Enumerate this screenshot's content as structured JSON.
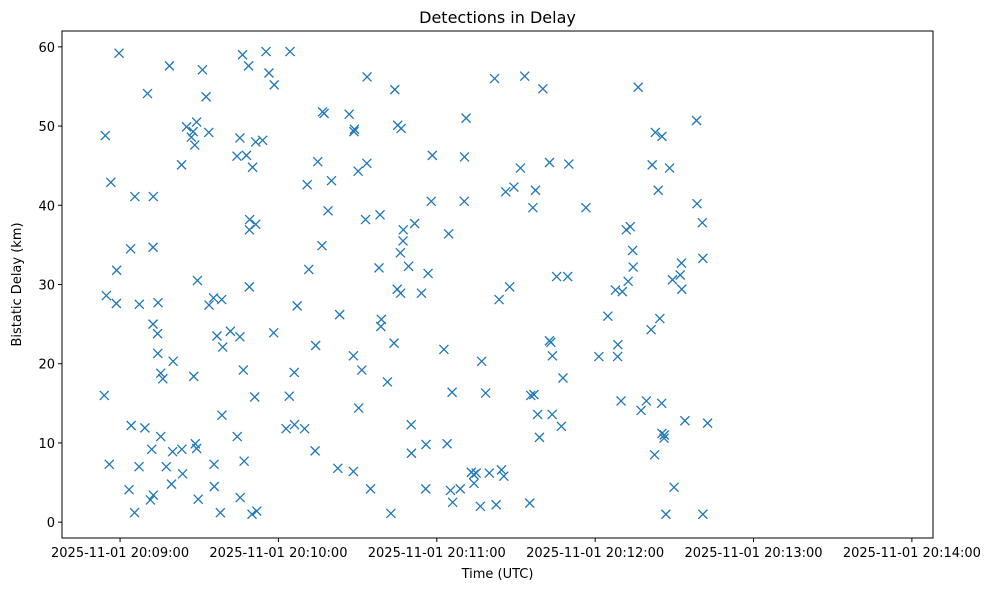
{
  "chart_data": {
    "type": "scatter",
    "title": "Detections in Delay",
    "xlabel": "Time (UTC)",
    "ylabel": "Bistatic Delay (km)",
    "x_unit": "seconds after 2025-11-01 20:08:00",
    "xlim": [
      38,
      368
    ],
    "ylim": [
      -2,
      62
    ],
    "x_ticks": [
      {
        "value": 60,
        "label": "2025-11-01 20:09:00"
      },
      {
        "value": 120,
        "label": "2025-11-01 20:10:00"
      },
      {
        "value": 180,
        "label": "2025-11-01 20:11:00"
      },
      {
        "value": 240,
        "label": "2025-11-01 20:12:00"
      },
      {
        "value": 300,
        "label": "2025-11-01 20:13:00"
      },
      {
        "value": 360,
        "label": "2025-11-01 20:14:00"
      }
    ],
    "y_ticks": [
      {
        "value": 0,
        "label": "0"
      },
      {
        "value": 10,
        "label": "10"
      },
      {
        "value": 20,
        "label": "20"
      },
      {
        "value": 30,
        "label": "30"
      },
      {
        "value": 40,
        "label": "40"
      },
      {
        "value": 50,
        "label": "50"
      },
      {
        "value": 60,
        "label": "60"
      }
    ],
    "marker": "x",
    "color": "#1f77b4",
    "series": [
      {
        "name": "detections",
        "points": [
          [
            54.0,
            16.0
          ],
          [
            54.4,
            48.8
          ],
          [
            54.8,
            28.6
          ],
          [
            55.9,
            7.3
          ],
          [
            56.5,
            42.9
          ],
          [
            58.6,
            27.6
          ],
          [
            58.7,
            31.8
          ],
          [
            59.6,
            59.2
          ],
          [
            63.4,
            4.1
          ],
          [
            64.2,
            12.2
          ],
          [
            64.0,
            34.5
          ],
          [
            65.6,
            41.1
          ],
          [
            65.5,
            1.2
          ],
          [
            67.3,
            27.5
          ],
          [
            67.2,
            7.0
          ],
          [
            69.4,
            11.9
          ],
          [
            70.4,
            54.1
          ],
          [
            71.5,
            2.8
          ],
          [
            72.0,
            9.2
          ],
          [
            72.6,
            3.4
          ],
          [
            72.6,
            41.1
          ],
          [
            72.5,
            34.7
          ],
          [
            72.5,
            25.0
          ],
          [
            74.2,
            23.8
          ],
          [
            74.3,
            21.3
          ],
          [
            74.4,
            27.7
          ],
          [
            75.4,
            18.8
          ],
          [
            75.4,
            10.8
          ],
          [
            76.2,
            18.1
          ],
          [
            77.5,
            7.0
          ],
          [
            78.7,
            57.6
          ],
          [
            79.5,
            4.8
          ],
          [
            79.9,
            8.9
          ],
          [
            80.1,
            20.3
          ],
          [
            83.3,
            45.1
          ],
          [
            83.4,
            9.2
          ],
          [
            83.7,
            6.1
          ],
          [
            85.2,
            49.9
          ],
          [
            87.0,
            48.6
          ],
          [
            87.7,
            49.3
          ],
          [
            87.9,
            18.4
          ],
          [
            88.3,
            47.6
          ],
          [
            88.5,
            9.9
          ],
          [
            89.0,
            50.5
          ],
          [
            89.0,
            9.3
          ],
          [
            89.3,
            30.5
          ],
          [
            89.6,
            2.9
          ],
          [
            91.2,
            57.1
          ],
          [
            92.6,
            53.7
          ],
          [
            93.6,
            49.2
          ],
          [
            93.7,
            27.4
          ],
          [
            95.4,
            28.3
          ],
          [
            95.6,
            7.3
          ],
          [
            95.7,
            4.5
          ],
          [
            96.7,
            23.5
          ],
          [
            98.0,
            1.2
          ],
          [
            98.5,
            28.1
          ],
          [
            98.6,
            13.5
          ],
          [
            98.9,
            22.1
          ],
          [
            101.8,
            24.1
          ],
          [
            104.3,
            46.2
          ],
          [
            104.4,
            10.8
          ],
          [
            105.4,
            48.5
          ],
          [
            105.4,
            23.4
          ],
          [
            105.5,
            3.1
          ],
          [
            106.4,
            59.0
          ],
          [
            106.7,
            19.2
          ],
          [
            107.0,
            7.7
          ],
          [
            107.9,
            46.3
          ],
          [
            108.7,
            57.6
          ],
          [
            109.0,
            29.7
          ],
          [
            109.0,
            36.9
          ],
          [
            109.1,
            38.2
          ],
          [
            110.2,
            44.8
          ],
          [
            110.0,
            1.0
          ],
          [
            111.0,
            15.8
          ],
          [
            111.4,
            37.6
          ],
          [
            111.4,
            48.0
          ],
          [
            111.8,
            1.4
          ],
          [
            114.0,
            48.2
          ],
          [
            115.3,
            59.4
          ],
          [
            116.4,
            56.7
          ],
          [
            118.4,
            55.2
          ],
          [
            118.2,
            23.9
          ],
          [
            122.9,
            11.8
          ],
          [
            124.1,
            15.9
          ],
          [
            124.4,
            59.4
          ],
          [
            126.0,
            18.9
          ],
          [
            126.1,
            12.3
          ],
          [
            127.1,
            27.3
          ],
          [
            129.9,
            11.8
          ],
          [
            130.9,
            42.6
          ],
          [
            131.5,
            31.9
          ],
          [
            133.9,
            9.0
          ],
          [
            134.1,
            22.3
          ],
          [
            134.9,
            45.5
          ],
          [
            136.5,
            34.9
          ],
          [
            136.7,
            51.8
          ],
          [
            137.3,
            51.6
          ],
          [
            138.8,
            39.3
          ],
          [
            140.1,
            43.1
          ],
          [
            142.5,
            6.8
          ],
          [
            143.2,
            26.2
          ],
          [
            146.8,
            51.5
          ],
          [
            148.4,
            6.4
          ],
          [
            148.8,
            49.6
          ],
          [
            148.6,
            49.3
          ],
          [
            148.4,
            21.0
          ],
          [
            150.4,
            14.4
          ],
          [
            150.2,
            44.3
          ],
          [
            151.6,
            19.2
          ],
          [
            153.0,
            38.2
          ],
          [
            153.5,
            45.3
          ],
          [
            153.6,
            56.2
          ],
          [
            154.9,
            4.2
          ],
          [
            158.1,
            32.1
          ],
          [
            158.5,
            38.8
          ],
          [
            159.0,
            25.6
          ],
          [
            158.8,
            24.7
          ],
          [
            161.3,
            17.7
          ],
          [
            162.6,
            1.1
          ],
          [
            163.8,
            22.6
          ],
          [
            164.1,
            54.6
          ],
          [
            165.0,
            29.4
          ],
          [
            165.2,
            50.1
          ],
          [
            166.2,
            34.0
          ],
          [
            166.5,
            49.7
          ],
          [
            166.3,
            28.9
          ],
          [
            167.2,
            35.5
          ],
          [
            167.3,
            36.9
          ],
          [
            169.3,
            32.3
          ],
          [
            170.3,
            12.3
          ],
          [
            170.4,
            8.7
          ],
          [
            171.6,
            37.7
          ],
          [
            174.2,
            28.9
          ],
          [
            175.9,
            9.8
          ],
          [
            175.8,
            4.2
          ],
          [
            176.7,
            31.4
          ],
          [
            178.3,
            46.3
          ],
          [
            177.9,
            40.5
          ],
          [
            182.7,
            21.8
          ],
          [
            183.9,
            9.9
          ],
          [
            184.5,
            36.4
          ],
          [
            185.2,
            4.0
          ],
          [
            186.0,
            2.5
          ],
          [
            185.8,
            16.4
          ],
          [
            188.9,
            4.2
          ],
          [
            190.4,
            40.5
          ],
          [
            190.5,
            46.1
          ],
          [
            191.1,
            51.0
          ],
          [
            193.1,
            6.3
          ],
          [
            194.0,
            6.0
          ],
          [
            194.1,
            4.9
          ],
          [
            194.9,
            6.2
          ],
          [
            196.5,
            2.0
          ],
          [
            197.0,
            20.3
          ],
          [
            198.5,
            16.3
          ],
          [
            199.9,
            6.2
          ],
          [
            201.9,
            56.0
          ],
          [
            202.5,
            2.2
          ],
          [
            203.6,
            28.1
          ],
          [
            204.5,
            6.6
          ],
          [
            205.4,
            5.8
          ],
          [
            206.1,
            41.7
          ],
          [
            207.6,
            29.7
          ],
          [
            209.2,
            42.3
          ],
          [
            211.7,
            44.7
          ],
          [
            213.3,
            56.3
          ],
          [
            215.2,
            2.4
          ],
          [
            215.6,
            16.0
          ],
          [
            216.4,
            39.7
          ],
          [
            216.8,
            16.1
          ],
          [
            217.4,
            41.9
          ],
          [
            218.2,
            13.6
          ],
          [
            218.9,
            10.7
          ],
          [
            220.2,
            54.7
          ],
          [
            222.7,
            45.4
          ],
          [
            222.7,
            22.9
          ],
          [
            223.2,
            22.7
          ],
          [
            223.8,
            21.0
          ],
          [
            223.7,
            13.6
          ],
          [
            225.4,
            31.0
          ],
          [
            227.2,
            12.1
          ],
          [
            227.8,
            18.2
          ],
          [
            229.6,
            31.0
          ],
          [
            230.0,
            45.2
          ],
          [
            236.5,
            39.7
          ],
          [
            241.4,
            20.9
          ],
          [
            244.8,
            26.0
          ],
          [
            247.7,
            29.3
          ],
          [
            248.6,
            22.4
          ],
          [
            248.5,
            20.9
          ],
          [
            249.8,
            15.3
          ],
          [
            250.3,
            29.1
          ],
          [
            251.8,
            36.9
          ],
          [
            252.5,
            30.4
          ],
          [
            253.3,
            37.3
          ],
          [
            254.2,
            34.3
          ],
          [
            254.4,
            32.2
          ],
          [
            256.3,
            54.9
          ],
          [
            257.4,
            14.1
          ],
          [
            259.4,
            15.3
          ],
          [
            261.2,
            24.3
          ],
          [
            261.6,
            45.1
          ],
          [
            262.5,
            8.5
          ],
          [
            262.8,
            49.2
          ],
          [
            263.9,
            41.9
          ],
          [
            264.5,
            25.7
          ],
          [
            265.3,
            48.7
          ],
          [
            265.3,
            11.2
          ],
          [
            265.2,
            15.0
          ],
          [
            266.1,
            10.6
          ],
          [
            266.2,
            11.0
          ],
          [
            266.8,
            1.0
          ],
          [
            268.2,
            44.7
          ],
          [
            269.3,
            30.6
          ],
          [
            269.9,
            4.4
          ],
          [
            272.2,
            31.2
          ],
          [
            272.7,
            32.7
          ],
          [
            272.8,
            29.4
          ],
          [
            274.0,
            12.8
          ],
          [
            278.4,
            50.7
          ],
          [
            278.6,
            40.2
          ],
          [
            280.6,
            37.8
          ],
          [
            280.8,
            33.3
          ],
          [
            280.8,
            1.0
          ],
          [
            282.6,
            12.5
          ]
        ]
      }
    ]
  }
}
